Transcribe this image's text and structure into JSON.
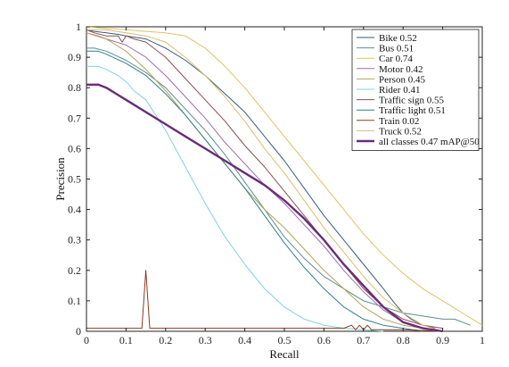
{
  "chart_data": {
    "type": "line",
    "xlabel": "Recall",
    "ylabel": "Precision",
    "xlim": [
      0,
      1
    ],
    "ylim": [
      0,
      1
    ],
    "xticks": [
      "0",
      "0.1",
      "0.2",
      "0.3",
      "0.4",
      "0.5",
      "0.6",
      "0.7",
      "0.8",
      "0.9",
      "1"
    ],
    "yticks": [
      "0",
      "0.1",
      "0.2",
      "0.3",
      "0.4",
      "0.5",
      "0.6",
      "0.7",
      "0.8",
      "0.9",
      "1"
    ],
    "grid": false,
    "legend_position": "top-right",
    "series": [
      {
        "name": "Bike 0.52",
        "color": "#3b5a7a",
        "x": [
          0,
          0.02,
          0.05,
          0.08,
          0.1,
          0.15,
          0.2,
          0.25,
          0.3,
          0.35,
          0.4,
          0.45,
          0.5,
          0.55,
          0.6,
          0.65,
          0.7,
          0.75,
          0.78,
          0.8,
          0.82,
          0.85,
          0.88
        ],
        "y": [
          0.99,
          0.985,
          0.98,
          0.975,
          0.97,
          0.96,
          0.93,
          0.89,
          0.84,
          0.78,
          0.72,
          0.64,
          0.56,
          0.47,
          0.38,
          0.3,
          0.22,
          0.14,
          0.09,
          0.06,
          0.04,
          0.02,
          0.01
        ]
      },
      {
        "name": "Bus 0.51",
        "color": "#5f8c8f",
        "x": [
          0,
          0.02,
          0.05,
          0.1,
          0.15,
          0.2,
          0.25,
          0.3,
          0.35,
          0.4,
          0.45,
          0.5,
          0.55,
          0.6,
          0.65,
          0.7,
          0.75,
          0.8,
          0.85,
          0.9,
          0.93,
          0.95,
          0.97
        ],
        "y": [
          0.93,
          0.93,
          0.92,
          0.89,
          0.85,
          0.8,
          0.73,
          0.66,
          0.58,
          0.49,
          0.4,
          0.31,
          0.24,
          0.18,
          0.14,
          0.1,
          0.08,
          0.06,
          0.05,
          0.04,
          0.04,
          0.03,
          0.02
        ]
      },
      {
        "name": "Car 0.74",
        "color": "#e1c262",
        "x": [
          0,
          0.05,
          0.1,
          0.15,
          0.2,
          0.25,
          0.3,
          0.35,
          0.4,
          0.45,
          0.5,
          0.55,
          0.6,
          0.65,
          0.7,
          0.75,
          0.8,
          0.85,
          0.9,
          0.95,
          1.0
        ],
        "y": [
          1.0,
          0.995,
          0.99,
          0.985,
          0.98,
          0.97,
          0.93,
          0.87,
          0.8,
          0.72,
          0.64,
          0.56,
          0.48,
          0.4,
          0.32,
          0.25,
          0.19,
          0.14,
          0.1,
          0.06,
          0.02
        ]
      },
      {
        "name": "Motor 0.42",
        "color": "#9a6fb0",
        "x": [
          0,
          0.03,
          0.05,
          0.1,
          0.15,
          0.2,
          0.25,
          0.3,
          0.35,
          0.4,
          0.45,
          0.5,
          0.55,
          0.6,
          0.65,
          0.7,
          0.75,
          0.8,
          0.85,
          0.9
        ],
        "y": [
          0.98,
          0.97,
          0.96,
          0.94,
          0.9,
          0.84,
          0.77,
          0.7,
          0.62,
          0.55,
          0.48,
          0.42,
          0.35,
          0.28,
          0.2,
          0.13,
          0.07,
          0.03,
          0.01,
          0.0
        ]
      },
      {
        "name": "Person 0.45",
        "color": "#b5a25a",
        "x": [
          0,
          0.05,
          0.1,
          0.15,
          0.2,
          0.25,
          0.3,
          0.35,
          0.4,
          0.45,
          0.5,
          0.55,
          0.6,
          0.65,
          0.7,
          0.75,
          0.8,
          0.85
        ],
        "y": [
          0.98,
          0.96,
          0.92,
          0.86,
          0.79,
          0.71,
          0.63,
          0.55,
          0.47,
          0.4,
          0.34,
          0.27,
          0.2,
          0.14,
          0.08,
          0.04,
          0.02,
          0.01
        ]
      },
      {
        "name": "Rider 0.41",
        "color": "#7ed3e0",
        "x": [
          0,
          0.03,
          0.05,
          0.08,
          0.1,
          0.12,
          0.15,
          0.2,
          0.25,
          0.3,
          0.35,
          0.4,
          0.45,
          0.5,
          0.55,
          0.6,
          0.65,
          0.7,
          0.75
        ],
        "y": [
          0.87,
          0.87,
          0.86,
          0.84,
          0.82,
          0.79,
          0.76,
          0.66,
          0.54,
          0.42,
          0.31,
          0.22,
          0.14,
          0.08,
          0.04,
          0.02,
          0.01,
          0.005,
          0.0
        ]
      },
      {
        "name": "Traffic sign 0.55",
        "color": "#8a4f55",
        "x": [
          0,
          0.02,
          0.05,
          0.08,
          0.09,
          0.1,
          0.12,
          0.15,
          0.2,
          0.25,
          0.3,
          0.35,
          0.4,
          0.45,
          0.5,
          0.55,
          0.6,
          0.65,
          0.7,
          0.75,
          0.8,
          0.85,
          0.9
        ],
        "y": [
          0.99,
          0.98,
          0.97,
          0.97,
          0.95,
          0.97,
          0.96,
          0.95,
          0.9,
          0.83,
          0.76,
          0.69,
          0.61,
          0.54,
          0.46,
          0.38,
          0.3,
          0.22,
          0.14,
          0.08,
          0.04,
          0.02,
          0.01
        ]
      },
      {
        "name": "Traffic light 0.51",
        "color": "#2e7f8e",
        "x": [
          0,
          0.03,
          0.05,
          0.1,
          0.15,
          0.2,
          0.25,
          0.3,
          0.35,
          0.4,
          0.45,
          0.5,
          0.55,
          0.6,
          0.65,
          0.7,
          0.75,
          0.8,
          0.85
        ],
        "y": [
          0.92,
          0.92,
          0.91,
          0.88,
          0.84,
          0.78,
          0.71,
          0.63,
          0.55,
          0.47,
          0.38,
          0.29,
          0.21,
          0.14,
          0.08,
          0.04,
          0.02,
          0.01,
          0.0
        ]
      },
      {
        "name": "Train 0.02",
        "color": "#8b3a1e",
        "x": [
          0,
          0.1,
          0.14,
          0.15,
          0.16,
          0.2,
          0.4,
          0.6,
          0.65,
          0.67,
          0.68,
          0.69,
          0.7,
          0.71,
          0.72,
          0.8,
          0.9
        ],
        "y": [
          0.01,
          0.01,
          0.01,
          0.2,
          0.01,
          0.01,
          0.01,
          0.01,
          0.01,
          0.02,
          0.005,
          0.02,
          0.005,
          0.02,
          0.005,
          0.005,
          0.0
        ]
      },
      {
        "name": "Truck 0.52",
        "color": "#d6c070",
        "x": [
          0,
          0.05,
          0.1,
          0.15,
          0.2,
          0.25,
          0.3,
          0.35,
          0.4,
          0.45,
          0.5,
          0.55,
          0.6,
          0.65,
          0.7,
          0.75,
          0.8,
          0.85,
          0.9
        ],
        "y": [
          0.99,
          0.99,
          0.98,
          0.97,
          0.95,
          0.9,
          0.84,
          0.77,
          0.69,
          0.6,
          0.52,
          0.43,
          0.34,
          0.26,
          0.18,
          0.11,
          0.06,
          0.02,
          0.0
        ]
      },
      {
        "name": "all classes 0.47 mAP@50",
        "color": "#6a2c7a",
        "bold": true,
        "x": [
          0,
          0.03,
          0.05,
          0.1,
          0.15,
          0.2,
          0.25,
          0.3,
          0.35,
          0.4,
          0.45,
          0.5,
          0.55,
          0.6,
          0.65,
          0.7,
          0.75,
          0.8,
          0.85,
          0.9
        ],
        "y": [
          0.81,
          0.81,
          0.8,
          0.76,
          0.72,
          0.68,
          0.64,
          0.6,
          0.56,
          0.52,
          0.48,
          0.43,
          0.37,
          0.3,
          0.22,
          0.15,
          0.08,
          0.03,
          0.01,
          0.0
        ]
      }
    ]
  }
}
